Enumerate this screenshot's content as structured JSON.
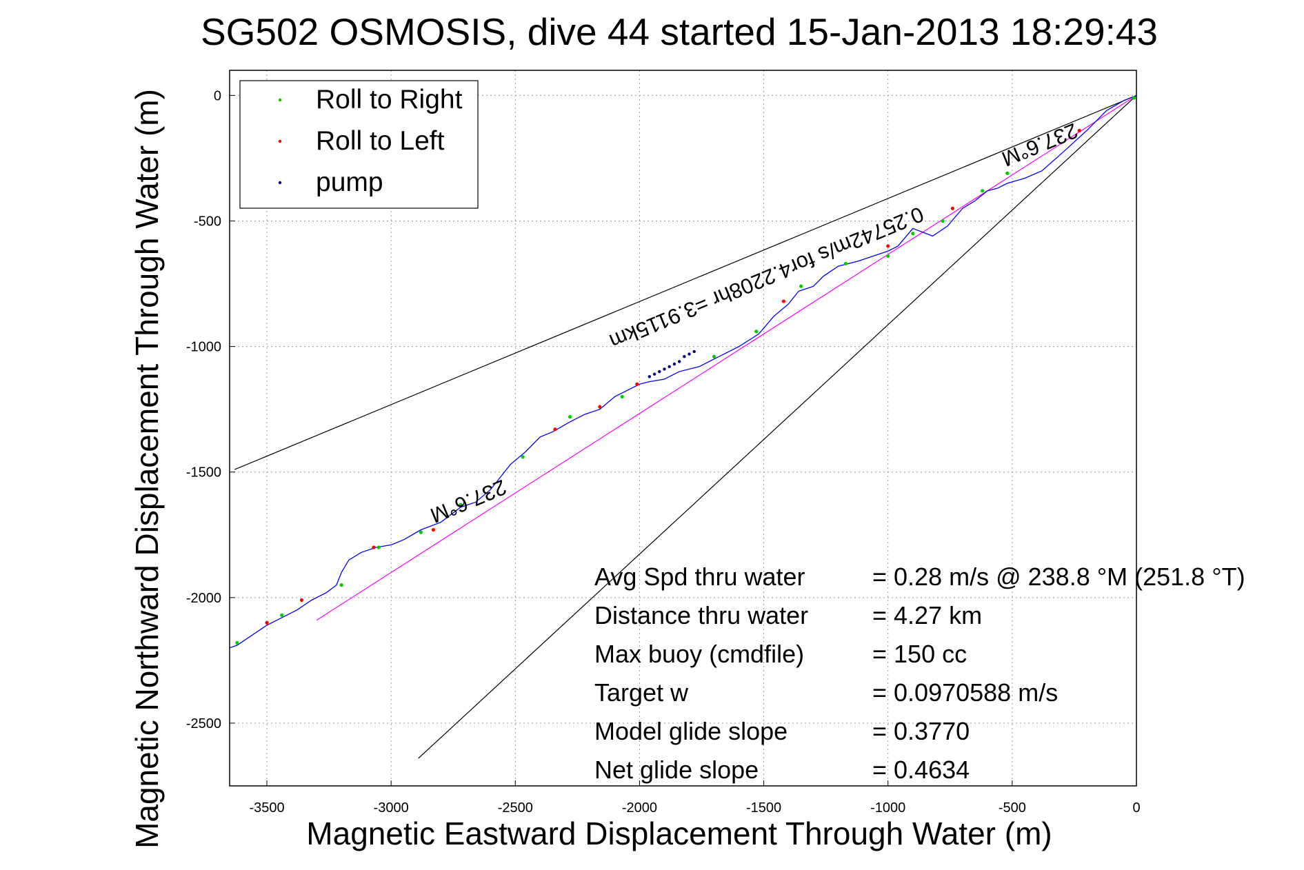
{
  "chart_data": {
    "type": "line",
    "title": "SG502 OSMOSIS, dive 44 started 15-Jan-2013 18:29:43",
    "xlabel": "Magnetic Eastward Displacement Through Water (m)",
    "ylabel": "Magnetic Northward Displacement Through Water (m)",
    "xlim": [
      -3650,
      0
    ],
    "ylim": [
      -2750,
      100
    ],
    "xticks": [
      -3500,
      -3000,
      -2500,
      -2000,
      -1500,
      -1000,
      -500,
      0
    ],
    "yticks": [
      0,
      -500,
      -1000,
      -1500,
      -2000,
      -2500
    ],
    "grid": true,
    "legend_position": "top-left",
    "legend": [
      {
        "label": "Roll to Right",
        "color": "#00cc00"
      },
      {
        "label": "Roll to Left",
        "color": "#ff0000"
      },
      {
        "label": "pump",
        "color": "#000080"
      }
    ],
    "track": {
      "name": "glider track",
      "color": "#0000ff",
      "x": [
        0,
        -50,
        -120,
        -200,
        -300,
        -380,
        -450,
        -520,
        -560,
        -600,
        -650,
        -700,
        -760,
        -820,
        -900,
        -960,
        -1000,
        -1060,
        -1120,
        -1200,
        -1260,
        -1300,
        -1330,
        -1360,
        -1400,
        -1460,
        -1520,
        -1600,
        -1680,
        -1760,
        -1840,
        -1900,
        -1960,
        -2000,
        -2040,
        -2100,
        -2160,
        -2220,
        -2280,
        -2350,
        -2400,
        -2460,
        -2520,
        -2600,
        -2660,
        -2720,
        -2800,
        -2880,
        -2950,
        -3000,
        -3060,
        -3120,
        -3170,
        -3200,
        -3220,
        -3260,
        -3320,
        -3380,
        -3440,
        -3500,
        -3560,
        -3620,
        -3650
      ],
      "y": [
        0,
        -20,
        -60,
        -140,
        -230,
        -300,
        -330,
        -350,
        -370,
        -380,
        -420,
        -450,
        -520,
        -560,
        -530,
        -600,
        -620,
        -640,
        -660,
        -680,
        -720,
        -760,
        -770,
        -780,
        -830,
        -880,
        -950,
        -1000,
        -1040,
        -1080,
        -1100,
        -1130,
        -1140,
        -1150,
        -1170,
        -1200,
        -1250,
        -1270,
        -1300,
        -1340,
        -1360,
        -1420,
        -1470,
        -1570,
        -1620,
        -1640,
        -1700,
        -1730,
        -1770,
        -1790,
        -1800,
        -1820,
        -1850,
        -1900,
        -1950,
        -1980,
        -2010,
        -2050,
        -2080,
        -2110,
        -2150,
        -2190,
        -2200
      ]
    },
    "roll_right": {
      "x": [
        -10,
        -520,
        -620,
        -780,
        -900,
        -1000,
        -1170,
        -1350,
        -1530,
        -1700,
        -2070,
        -2280,
        -2470,
        -2720,
        -2880,
        -3050,
        -3200,
        -3440,
        -3620
      ],
      "y": [
        -10,
        -310,
        -380,
        -500,
        -550,
        -640,
        -670,
        -760,
        -940,
        -1040,
        -1200,
        -1280,
        -1440,
        -1630,
        -1740,
        -1800,
        -1950,
        -2070,
        -2180
      ]
    },
    "roll_left": {
      "x": [
        -230,
        -740,
        -1000,
        -1420,
        -2010,
        -2160,
        -2340,
        -2830,
        -3070,
        -3360,
        -3500
      ],
      "y": [
        -140,
        -450,
        -600,
        -820,
        -1150,
        -1240,
        -1330,
        -1730,
        -1800,
        -2010,
        -2100
      ]
    },
    "pump": {
      "x": [
        -1780,
        -1800,
        -1820,
        -1840,
        -1860,
        -1880,
        -1900,
        -1920,
        -1940,
        -1960
      ],
      "y": [
        -1020,
        -1030,
        -1040,
        -1060,
        -1070,
        -1080,
        -1090,
        -1100,
        -1110,
        -1120
      ]
    },
    "reference_lines": [
      {
        "name": "upper bearing bound",
        "color": "#000000",
        "x": [
          0,
          -3630
        ],
        "y": [
          0,
          -1490
        ]
      },
      {
        "name": "lower bearing bound",
        "color": "#000000",
        "x": [
          0,
          -2890
        ],
        "y": [
          0,
          -2640
        ]
      },
      {
        "name": "net displacement",
        "color": "#ff00ff",
        "x": [
          -3300,
          0
        ],
        "y": [
          -2090,
          0
        ]
      }
    ],
    "rotated_labels": [
      {
        "text": "237.6°M",
        "x": -400,
        "y": -170
      },
      {
        "text": "0.25742m/s for4.2208hr =3.9115km",
        "x": -1500,
        "y": -700
      },
      {
        "text": "237.6°M",
        "x": -2700,
        "y": -1590
      }
    ],
    "annotations": [
      {
        "label": "Avg Spd thru water",
        "value": "=  0.28 m/s @ 238.8 °M (251.8 °T)"
      },
      {
        "label": "Distance thru water",
        "value": "=  4.27 km"
      },
      {
        "label": "Max buoy (cmdfile)",
        "value": "= 150 cc"
      },
      {
        "label": "Target w",
        "value": "= 0.0970588 m/s"
      },
      {
        "label": "Model glide slope",
        "value": "= 0.3770"
      },
      {
        "label": "Net glide slope",
        "value": "= 0.4634"
      }
    ]
  }
}
